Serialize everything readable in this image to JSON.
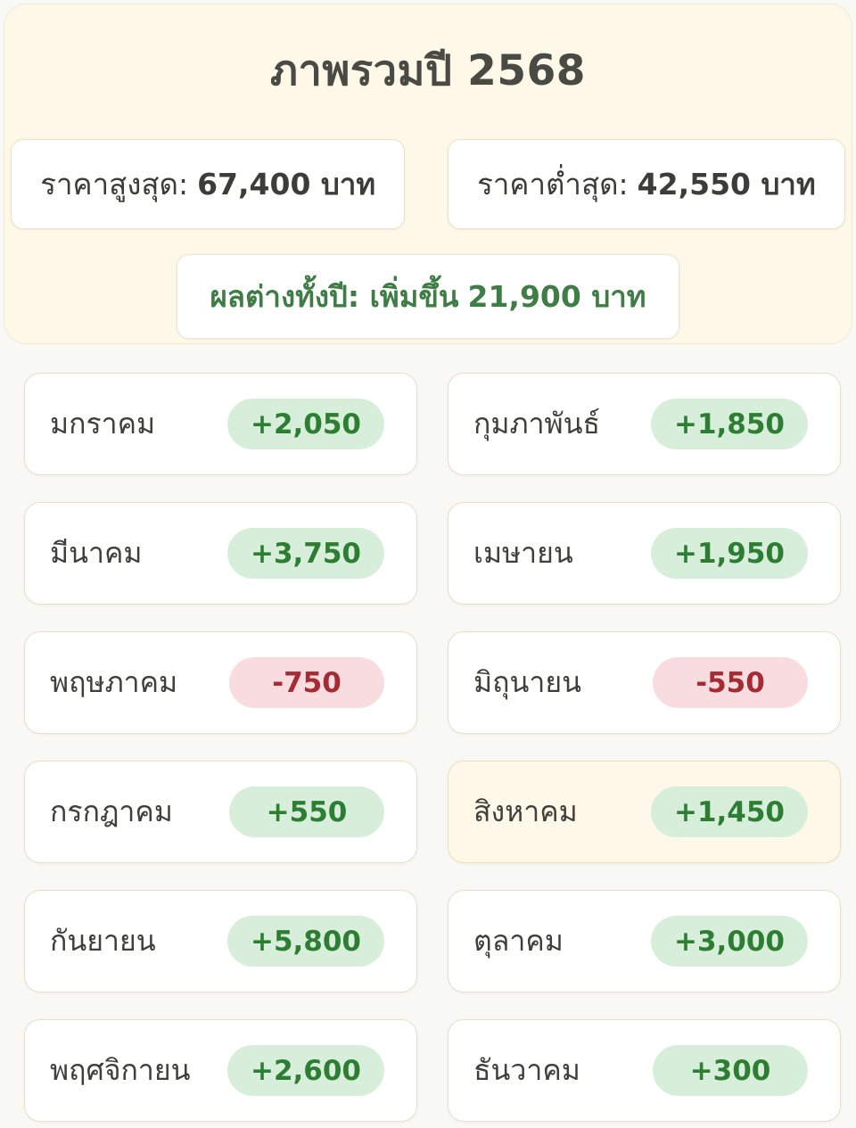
{
  "header": {
    "title": "ภาพรวมปี 2568"
  },
  "summary": {
    "highest_label": "ราคาสูงสุด:",
    "highest_value": "67,400 บาท",
    "lowest_label": "ราคาต่ำสุด:",
    "lowest_value": "42,550 บาท",
    "change_label": "ผลต่างทั้งปี: เพิ่มขึ้น",
    "change_value": "21,900 บาท"
  },
  "months": [
    {
      "name": "มกราคม",
      "change": "+2,050",
      "direction": "up",
      "highlighted": false
    },
    {
      "name": "กุมภาพันธ์",
      "change": "+1,850",
      "direction": "up",
      "highlighted": false
    },
    {
      "name": "มีนาคม",
      "change": "+3,750",
      "direction": "up",
      "highlighted": false
    },
    {
      "name": "เมษายน",
      "change": "+1,950",
      "direction": "up",
      "highlighted": false
    },
    {
      "name": "พฤษภาคม",
      "change": "-750",
      "direction": "down",
      "highlighted": false
    },
    {
      "name": "มิถุนายน",
      "change": "-550",
      "direction": "down",
      "highlighted": false
    },
    {
      "name": "กรกฎาคม",
      "change": "+550",
      "direction": "up",
      "highlighted": false
    },
    {
      "name": "สิงหาคม",
      "change": "+1,450",
      "direction": "up",
      "highlighted": true
    },
    {
      "name": "กันยายน",
      "change": "+5,800",
      "direction": "up",
      "highlighted": false
    },
    {
      "name": "ตุลาคม",
      "change": "+3,000",
      "direction": "up",
      "highlighted": false
    },
    {
      "name": "พฤศจิกายน",
      "change": "+2,600",
      "direction": "up",
      "highlighted": false
    },
    {
      "name": "ธันวาคม",
      "change": "+300",
      "direction": "up",
      "highlighted": false
    }
  ],
  "colors": {
    "page_background": "#f8f8f5",
    "card_cream": "#fdf8e7",
    "card_border": "#f0e8d1",
    "month_card_border": "#e7e0c9",
    "positive_badge_bg": "#d7efda",
    "positive_badge_text": "#2d7d33",
    "negative_badge_bg": "#f9dcdf",
    "negative_badge_text": "#a52b33",
    "yearly_change_text": "#3e7d44",
    "title_text": "#4a4a44"
  }
}
